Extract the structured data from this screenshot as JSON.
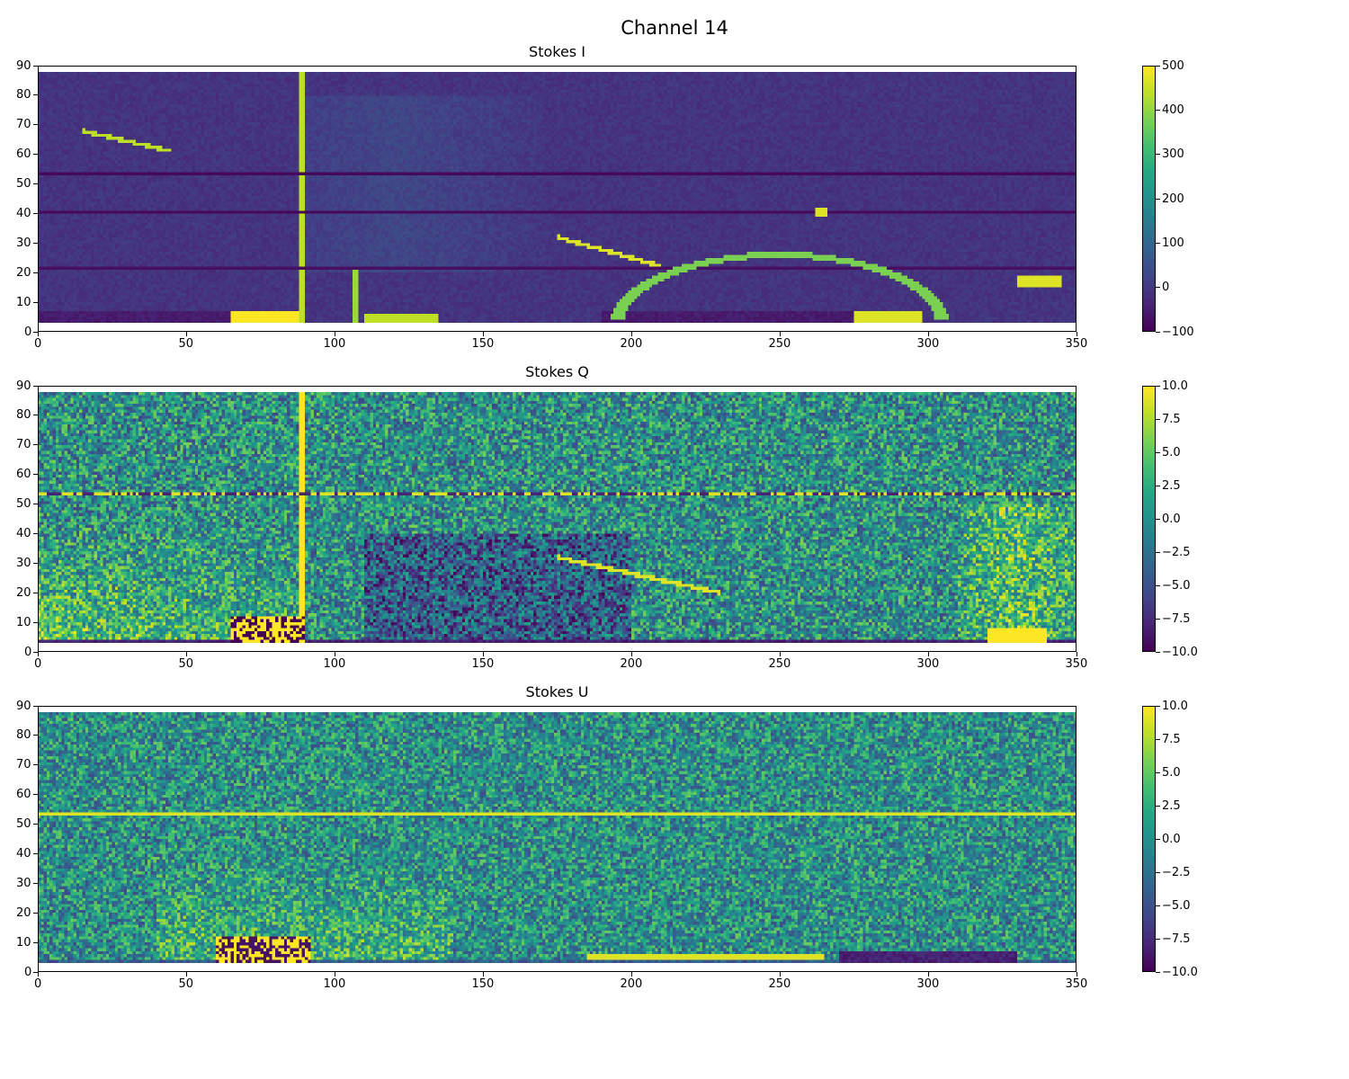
{
  "figure": {
    "title": "Channel 14"
  },
  "chart_data": [
    {
      "type": "heatmap",
      "title": "Stokes I",
      "xlim": [
        0,
        350
      ],
      "ylim": [
        0,
        90
      ],
      "xticks": [
        "0",
        "50",
        "100",
        "150",
        "200",
        "250",
        "300",
        "350"
      ],
      "yticks": [
        "0",
        "10",
        "20",
        "30",
        "40",
        "50",
        "60",
        "70",
        "80",
        "90"
      ],
      "data_extent_y": [
        3,
        88
      ],
      "colormap": "viridis",
      "colorbar": {
        "min": -100,
        "max": 500,
        "ticks": [
          "−100",
          "0",
          "100",
          "200",
          "300",
          "400",
          "500"
        ]
      }
    },
    {
      "type": "heatmap",
      "title": "Stokes Q",
      "xlim": [
        0,
        350
      ],
      "ylim": [
        0,
        90
      ],
      "xticks": [
        "0",
        "50",
        "100",
        "150",
        "200",
        "250",
        "300",
        "350"
      ],
      "yticks": [
        "0",
        "10",
        "20",
        "30",
        "40",
        "50",
        "60",
        "70",
        "80",
        "90"
      ],
      "data_extent_y": [
        3,
        88
      ],
      "colormap": "viridis",
      "colorbar": {
        "min": -10,
        "max": 10,
        "ticks": [
          "−10.0",
          "−7.5",
          "−5.0",
          "−2.5",
          "0.0",
          "2.5",
          "5.0",
          "7.5",
          "10.0"
        ]
      }
    },
    {
      "type": "heatmap",
      "title": "Stokes U",
      "xlim": [
        0,
        350
      ],
      "ylim": [
        0,
        90
      ],
      "xticks": [
        "0",
        "50",
        "100",
        "150",
        "200",
        "250",
        "300",
        "350"
      ],
      "yticks": [
        "0",
        "10",
        "20",
        "30",
        "40",
        "50",
        "60",
        "70",
        "80",
        "90"
      ],
      "data_extent_y": [
        3,
        88
      ],
      "colormap": "viridis",
      "colorbar": {
        "min": -10,
        "max": 10,
        "ticks": [
          "−10.0",
          "−7.5",
          "−5.0",
          "−2.5",
          "0.0",
          "2.5",
          "5.0",
          "7.5",
          "10.0"
        ]
      }
    }
  ]
}
